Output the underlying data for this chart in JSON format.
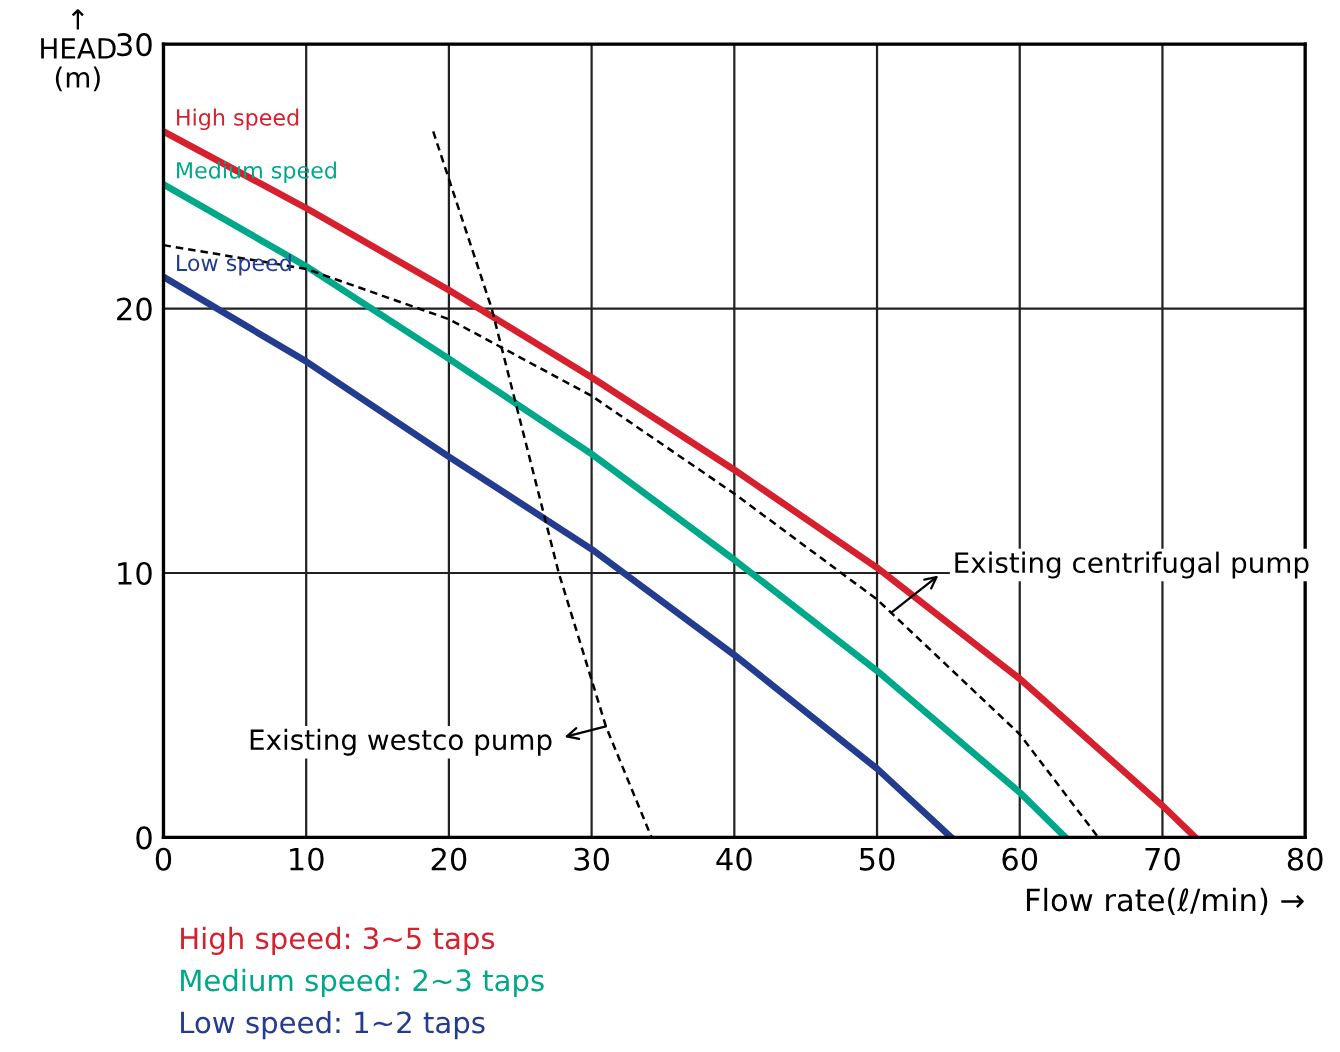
{
  "chart_data": {
    "type": "line",
    "xlabel": "Flow rate(ℓ/min) →",
    "ylabel": "↑\nHEAD\n(m)",
    "xlim": [
      0,
      80
    ],
    "ylim": [
      0,
      30
    ],
    "xticks": [
      0,
      10,
      20,
      30,
      40,
      50,
      60,
      70,
      80
    ],
    "yticks": [
      0,
      10,
      20,
      30
    ],
    "grid": true,
    "legend": false,
    "marker": "none",
    "series": [
      {
        "name": "High speed",
        "color": "#d7202e",
        "line_style": "solid",
        "x": [
          0,
          10,
          20,
          30,
          40,
          50,
          60,
          70,
          72.3
        ],
        "values": [
          26.7,
          23.8,
          20.7,
          17.4,
          13.9,
          10.2,
          6.0,
          1.2,
          0
        ]
      },
      {
        "name": "Medium speed",
        "color": "#00a88a",
        "line_style": "solid",
        "x": [
          0,
          10,
          20,
          30,
          40,
          50,
          60,
          63.2
        ],
        "values": [
          24.7,
          21.6,
          18.1,
          14.5,
          10.5,
          6.3,
          1.7,
          0
        ]
      },
      {
        "name": "Low speed",
        "color": "#243c8f",
        "line_style": "solid",
        "x": [
          0,
          10,
          20,
          30,
          40,
          50,
          55.2
        ],
        "values": [
          21.2,
          18.0,
          14.4,
          10.9,
          6.9,
          2.6,
          0
        ]
      },
      {
        "color": "#000000",
        "line_style": "dashed",
        "x": [
          0,
          10,
          20,
          30,
          40,
          50,
          60,
          65.5
        ],
        "values": [
          22.4,
          21.5,
          19.6,
          16.7,
          13.0,
          9.0,
          3.9,
          0
        ]
      },
      {
        "color": "#000000",
        "line_style": "dashed",
        "x": [
          18.9,
          23,
          27.7,
          31,
          34.2
        ],
        "values": [
          26.7,
          20,
          10,
          4.2,
          0
        ]
      }
    ],
    "annotations": [
      {
        "text": "Existing centrifugal pump",
        "x": 51,
        "y": 8.5
      },
      {
        "text": "Existing westco pump",
        "x": 31,
        "y": 4.2
      },
      "High speed: 3~5 taps",
      "Medium speed: 2~3 taps",
      "Low speed: 1~2 taps"
    ]
  }
}
